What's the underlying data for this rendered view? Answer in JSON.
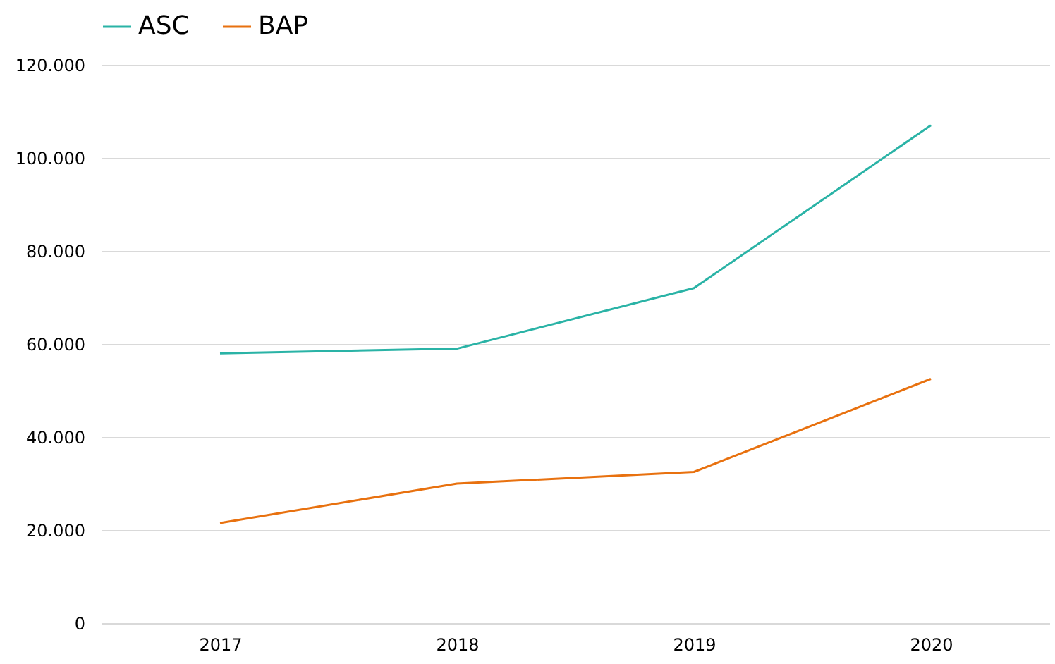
{
  "chart_data": {
    "type": "line",
    "categories": [
      "2017",
      "2018",
      "2019",
      "2020"
    ],
    "series": [
      {
        "name": "ASC",
        "color": "#2ab3a6",
        "values": [
          58000,
          59000,
          72000,
          107000
        ]
      },
      {
        "name": "BAP",
        "color": "#e8710f",
        "values": [
          21500,
          30000,
          32500,
          52500
        ]
      }
    ],
    "ylim": [
      0,
      120000
    ],
    "yticks": [
      {
        "value": 0,
        "label": "0"
      },
      {
        "value": 20000,
        "label": "20.000"
      },
      {
        "value": 40000,
        "label": "40.000"
      },
      {
        "value": 60000,
        "label": "60.000"
      },
      {
        "value": 80000,
        "label": "80.000"
      },
      {
        "value": 100000,
        "label": "100.000"
      },
      {
        "value": 120000,
        "label": "120.000"
      }
    ],
    "grid": "y",
    "legend": "top",
    "marker": "none",
    "line_style": "solid"
  }
}
